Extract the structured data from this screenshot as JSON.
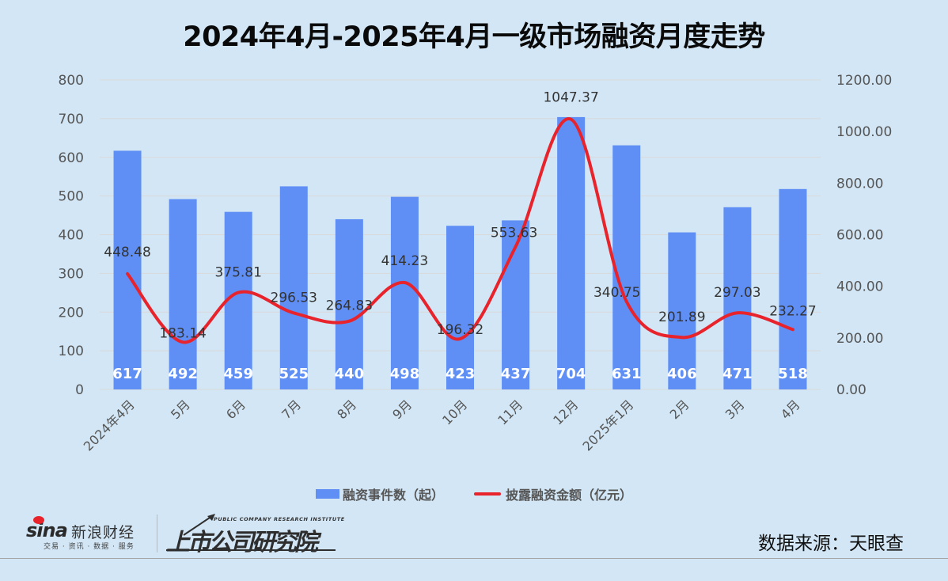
{
  "title": "2024年4月-2025年4月一级市场融资月度走势",
  "chart_data": {
    "type": "bar+line",
    "title": "2024年4月-2025年4月一级市场融资月度走势",
    "categories": [
      "2024年4月",
      "5月",
      "6月",
      "7月",
      "8月",
      "9月",
      "10月",
      "11月",
      "12月",
      "2025年1月",
      "2月",
      "3月",
      "4月"
    ],
    "series": [
      {
        "name": "融资事件数（起）",
        "type": "bar",
        "axis": "left",
        "color": "#5f8ff5",
        "values": [
          617,
          492,
          459,
          525,
          440,
          498,
          423,
          437,
          704,
          631,
          406,
          471,
          518
        ]
      },
      {
        "name": "披露融资金额（亿元）",
        "type": "line",
        "axis": "right",
        "color": "#e8232b",
        "smooth": true,
        "values": [
          448.48,
          183.14,
          375.81,
          296.53,
          264.83,
          414.23,
          196.32,
          553.63,
          1047.37,
          340.75,
          201.89,
          297.03,
          232.27
        ]
      }
    ],
    "left_axis": {
      "min": 0,
      "max": 800,
      "ticks": [
        "0",
        "100",
        "200",
        "300",
        "400",
        "500",
        "600",
        "700",
        "800"
      ]
    },
    "right_axis": {
      "min": 0,
      "max": 1200,
      "ticks": [
        "0.00",
        "200.00",
        "400.00",
        "600.00",
        "800.00",
        "1000.00",
        "1200.00"
      ]
    },
    "xlabel": "",
    "ylabel": "",
    "y2label": "",
    "grid": true,
    "legend_position": "bottom"
  },
  "legend": {
    "bar_label": "融资事件数（起）",
    "line_label": "披露融资金额（亿元）"
  },
  "footer": {
    "sina_word": "sina",
    "sina_cn": "新浪财经",
    "sina_sub": "交易 · 资讯 · 数据 · 服务",
    "inst_en": "PUBLIC COMPANY RESEARCH INSTITUTE",
    "inst_cn": "上市公司研究院",
    "source": "数据来源：天眼查"
  },
  "colors": {
    "background": "#d2e6f5",
    "bar": "#5f8ff5",
    "line": "#e8232b",
    "grid": "#d9d9d9",
    "axis_text": "#555555",
    "label_text": "#333333"
  }
}
